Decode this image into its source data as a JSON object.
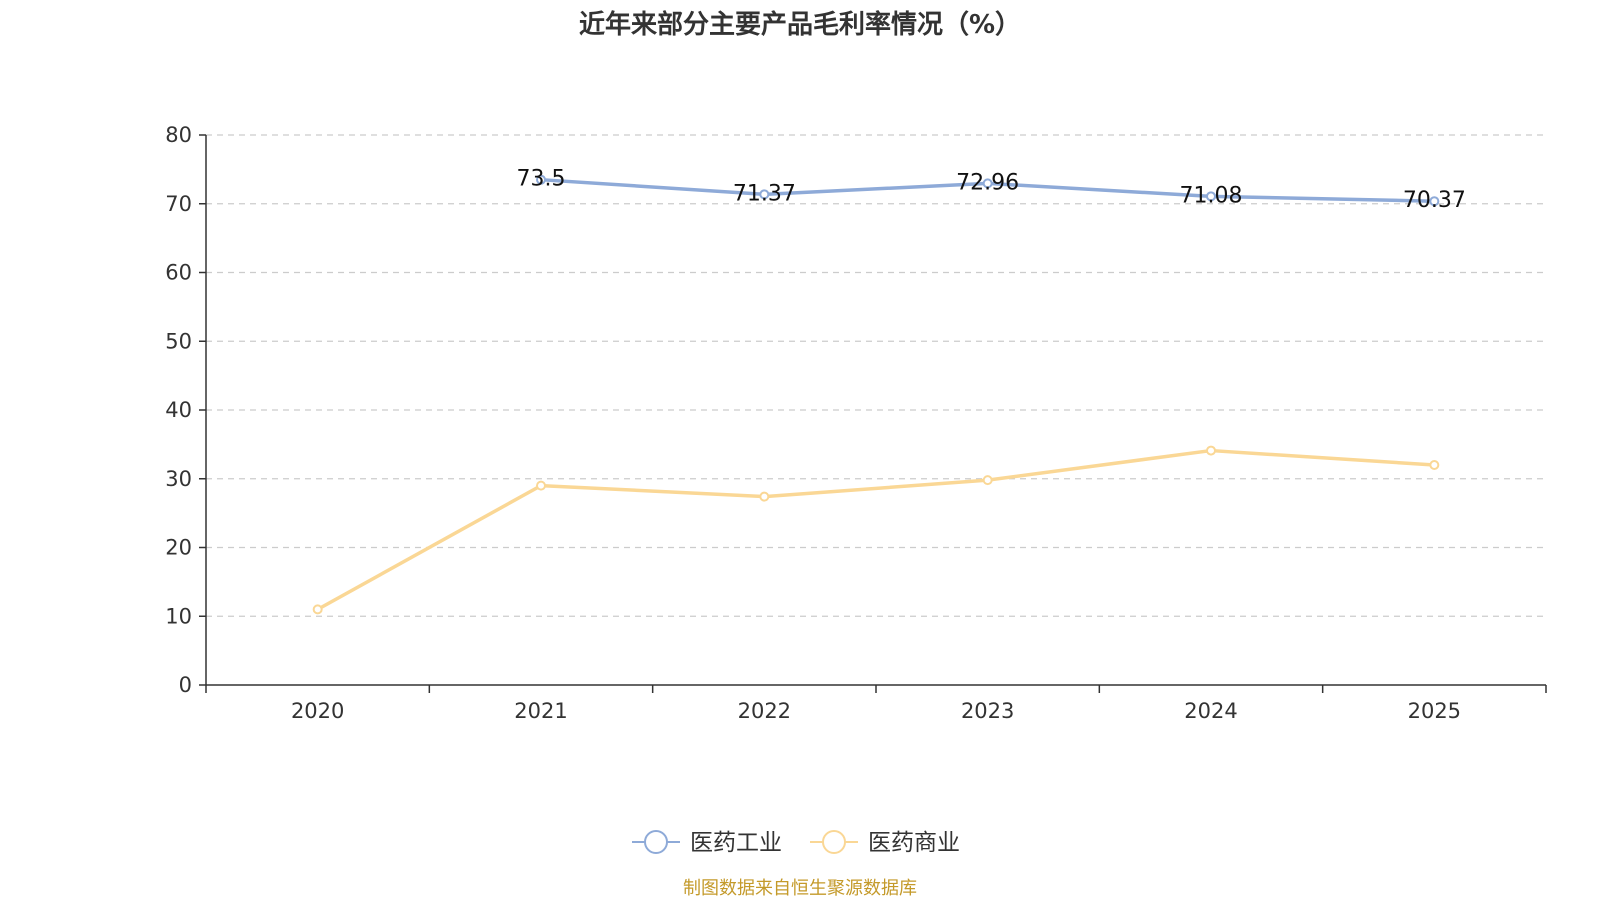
{
  "chart_data": {
    "type": "line",
    "title": "近年来部分主要产品毛利率情况（%）",
    "categories": [
      "2020",
      "2021",
      "2022",
      "2023",
      "2024",
      "2025"
    ],
    "series": [
      {
        "name": "医药工业",
        "color": "#8eaad8",
        "values": [
          null,
          73.5,
          71.37,
          72.96,
          71.08,
          70.37
        ],
        "labels": [
          "",
          "73.5",
          "71.37",
          "72.96",
          "71.08",
          "70.37"
        ],
        "show_labels": true
      },
      {
        "name": "医药商业",
        "color": "#fad795",
        "values": [
          11.0,
          29.0,
          27.4,
          29.8,
          34.1,
          32.0
        ],
        "show_labels": false
      }
    ],
    "ylim": [
      0,
      80
    ],
    "yticks": [
      "0",
      "10",
      "20",
      "30",
      "40",
      "50",
      "60",
      "70",
      "80"
    ],
    "grid": true,
    "legend": "bottom-center",
    "xlabel": "",
    "ylabel": ""
  },
  "footer": {
    "source": "制图数据来自恒生聚源数据库"
  }
}
